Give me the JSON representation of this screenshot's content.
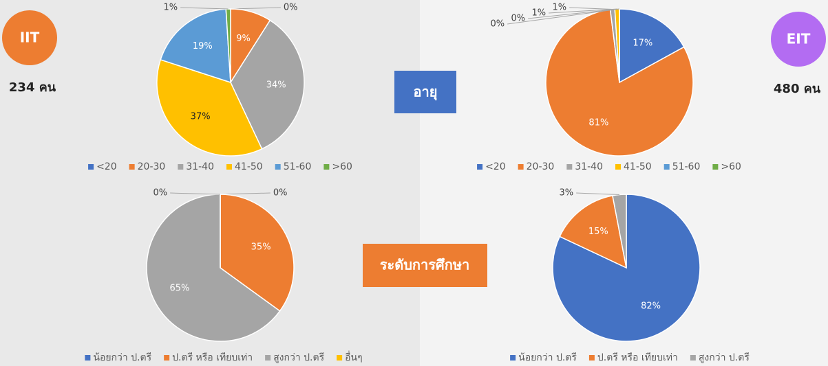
{
  "chart_data": [
    {
      "type": "pie",
      "categories": [
        "<20",
        "20-30",
        "31-40",
        "41-50",
        "51-60",
        ">60"
      ],
      "values": [
        0,
        9,
        34,
        37,
        19,
        1
      ],
      "value_labels": [
        "0%",
        "9%",
        "34%",
        "37%",
        "19%",
        "1%"
      ],
      "colors": [
        "#4472c4",
        "#ed7d31",
        "#a5a5a5",
        "#ffc000",
        "#5b9bd5",
        "#70ad47"
      ]
    },
    {
      "type": "pie",
      "categories": [
        "<20",
        "20-30",
        "31-40",
        "41-50",
        "51-60",
        ">60"
      ],
      "values": [
        17,
        81,
        1,
        1,
        0,
        0
      ],
      "value_labels": [
        "17%",
        "81%",
        "1%",
        "1%",
        "0%",
        "0%"
      ],
      "colors": [
        "#4472c4",
        "#ed7d31",
        "#a5a5a5",
        "#ffc000",
        "#5b9bd5",
        "#70ad47"
      ]
    },
    {
      "type": "pie",
      "categories": [
        "น้อยกว่า ป.ตรี",
        "ป.ตรี หรือ เทียบเท่า",
        "สูงกว่า ป.ตรี",
        "อื่นๆ"
      ],
      "values": [
        0,
        35,
        65,
        0
      ],
      "value_labels": [
        "0%",
        "35%",
        "65%",
        "0%"
      ],
      "colors": [
        "#4472c4",
        "#ed7d31",
        "#a5a5a5",
        "#ffc000"
      ]
    },
    {
      "type": "pie",
      "categories": [
        "น้อยกว่า ป.ตรี",
        "ป.ตรี หรือ เทียบเท่า",
        "สูงกว่า ป.ตรี"
      ],
      "values": [
        82,
        15,
        3
      ],
      "value_labels": [
        "82%",
        "15%",
        "3%"
      ],
      "colors": [
        "#4472c4",
        "#ed7d31",
        "#a5a5a5"
      ]
    }
  ],
  "badges": [
    {
      "label": "IIT",
      "count": "234 คน"
    },
    {
      "label": "EIT",
      "count": "480 คน"
    }
  ],
  "sections": [
    "อายุ",
    "ระดับการศึกษา"
  ]
}
